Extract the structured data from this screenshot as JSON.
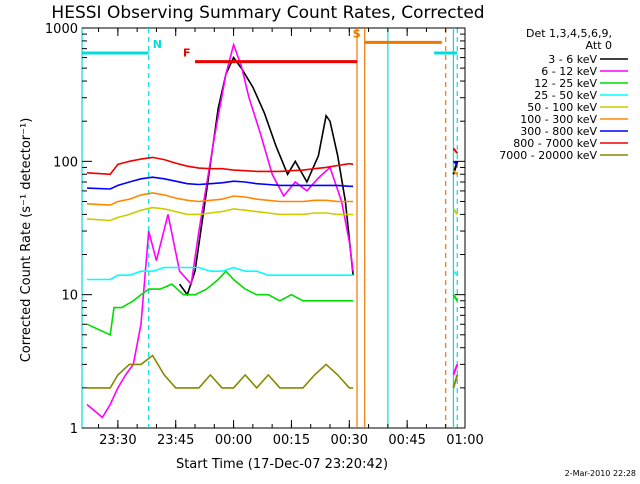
{
  "chart_data": {
    "type": "line",
    "title": "HESSI Observing Summary Count Rates, Corrected",
    "xlabel": "Start Time (17-Dec-07 23:20:42)",
    "ylabel": "Corrected Count Rate (s⁻¹ detector⁻¹)",
    "yscale": "log",
    "ylim": [
      1,
      1000
    ],
    "xlim": [
      "23:20:42",
      "01:00"
    ],
    "x_ticks": [
      "23:30",
      "23:45",
      "00:00",
      "00:15",
      "00:30",
      "00:45",
      "01:00"
    ],
    "y_ticks": [
      "1",
      "10",
      "100",
      "1000"
    ],
    "legend_title": [
      "Det 1,3,4,5,6,9,",
      "Att 0"
    ],
    "legend_position": "right",
    "timestamp": "2-Mar-2010 22:28",
    "series": [
      {
        "name": "3 - 6 keV",
        "color": "#000000",
        "x": [
          "23:46",
          "23:48",
          "23:50",
          "23:53",
          "23:56",
          "23:58",
          "00:00",
          "00:02",
          "00:05",
          "00:08",
          "00:11",
          "00:14",
          "00:16",
          "00:19",
          "00:22",
          "00:24",
          "00:25",
          "00:27",
          "00:29",
          "00:31"
        ],
        "y": [
          12,
          10,
          15,
          60,
          250,
          450,
          600,
          500,
          360,
          230,
          130,
          80,
          100,
          70,
          110,
          220,
          200,
          110,
          50,
          14
        ]
      },
      {
        "name": "6 - 12 keV",
        "color": "#ff00ff",
        "x": [
          "23:22",
          "23:26",
          "23:28",
          "23:30",
          "23:32",
          "23:34",
          "23:36",
          "23:38",
          "23:40",
          "23:43",
          "23:46",
          "23:49",
          "23:51",
          "23:55",
          "23:58",
          "00:00",
          "00:02",
          "00:04",
          "00:07",
          "00:10",
          "00:13",
          "00:16",
          "00:19",
          "00:22",
          "00:25",
          "00:28",
          "00:30",
          "00:31"
        ],
        "y": [
          1.5,
          1.2,
          1.5,
          2,
          2.5,
          3,
          6,
          30,
          18,
          40,
          15,
          12,
          30,
          150,
          450,
          750,
          520,
          300,
          160,
          80,
          55,
          70,
          60,
          75,
          90,
          50,
          25,
          15
        ]
      },
      {
        "name": "12 - 25 keV",
        "color": "#00dd00",
        "x": [
          "23:22",
          "23:28",
          "23:29",
          "23:31",
          "23:34",
          "23:36",
          "23:38",
          "23:41",
          "23:44",
          "23:47",
          "23:50",
          "23:53",
          "23:56",
          "23:58",
          "24:00",
          "00:03",
          "00:06",
          "00:09",
          "00:12",
          "00:15",
          "00:18",
          "00:21",
          "00:24",
          "00:27",
          "00:30",
          "00:31"
        ],
        "y": [
          6,
          5,
          8,
          8,
          9,
          10,
          11,
          11,
          12,
          10,
          10,
          11,
          13,
          15,
          13,
          11,
          10,
          10,
          9,
          10,
          9,
          9,
          9,
          9,
          9,
          9
        ]
      },
      {
        "name": "25 - 50 keV",
        "color": "#00ffff",
        "x": [
          "23:22",
          "23:28",
          "23:30",
          "23:33",
          "23:36",
          "23:39",
          "23:42",
          "23:45",
          "23:48",
          "23:51",
          "23:54",
          "23:57",
          "00:00",
          "00:03",
          "00:06",
          "00:09",
          "00:12",
          "00:15",
          "00:18",
          "00:21",
          "00:24",
          "00:27",
          "00:30",
          "00:31"
        ],
        "y": [
          13,
          13,
          14,
          14,
          15,
          15,
          16,
          16,
          16,
          16,
          15,
          15,
          16,
          15,
          15,
          14,
          14,
          14,
          14,
          14,
          14,
          14,
          14,
          14
        ]
      },
      {
        "name": "50 - 100 keV",
        "color": "#cccc00",
        "x": [
          "23:22",
          "23:28",
          "23:30",
          "23:33",
          "23:36",
          "23:39",
          "23:42",
          "23:45",
          "23:48",
          "23:51",
          "23:54",
          "23:57",
          "00:00",
          "00:03",
          "00:06",
          "00:09",
          "00:12",
          "00:15",
          "00:18",
          "00:21",
          "00:24",
          "00:27",
          "00:30",
          "00:31"
        ],
        "y": [
          37,
          36,
          38,
          40,
          43,
          45,
          44,
          42,
          40,
          40,
          41,
          42,
          44,
          43,
          42,
          41,
          40,
          40,
          40,
          41,
          41,
          40,
          40,
          40
        ]
      },
      {
        "name": "100 - 300 keV",
        "color": "#ff8800",
        "x": [
          "23:22",
          "23:28",
          "23:30",
          "23:33",
          "23:36",
          "23:39",
          "23:42",
          "23:45",
          "23:48",
          "23:51",
          "23:54",
          "23:57",
          "00:00",
          "00:03",
          "00:06",
          "00:09",
          "00:12",
          "00:15",
          "00:18",
          "00:21",
          "00:24",
          "00:27",
          "00:30",
          "00:31"
        ],
        "y": [
          48,
          47,
          50,
          52,
          56,
          58,
          56,
          53,
          51,
          50,
          51,
          52,
          55,
          54,
          52,
          51,
          50,
          50,
          50,
          51,
          51,
          50,
          50,
          50
        ]
      },
      {
        "name": "300 - 800 keV",
        "color": "#0000ff",
        "x": [
          "23:22",
          "23:28",
          "23:30",
          "23:33",
          "23:36",
          "23:39",
          "23:42",
          "23:45",
          "23:48",
          "23:51",
          "23:54",
          "23:57",
          "00:00",
          "00:03",
          "00:06",
          "00:09",
          "00:12",
          "00:15",
          "00:18",
          "00:21",
          "00:24",
          "00:27",
          "00:30",
          "00:31"
        ],
        "y": [
          63,
          62,
          66,
          70,
          74,
          76,
          74,
          71,
          68,
          67,
          68,
          69,
          71,
          70,
          68,
          67,
          66,
          66,
          66,
          66,
          66,
          66,
          65,
          65
        ]
      },
      {
        "name": "800 - 7000 keV",
        "color": "#ee0000",
        "x": [
          "23:22",
          "23:28",
          "23:30",
          "23:33",
          "23:36",
          "23:39",
          "23:42",
          "23:45",
          "23:48",
          "23:51",
          "23:54",
          "23:57",
          "00:00",
          "00:03",
          "00:06",
          "00:09",
          "00:12",
          "00:15",
          "00:18",
          "00:21",
          "00:24",
          "00:27",
          "00:30",
          "00:31"
        ],
        "y": [
          82,
          80,
          95,
          100,
          104,
          107,
          103,
          97,
          92,
          89,
          88,
          88,
          86,
          85,
          84,
          84,
          84,
          85,
          86,
          88,
          90,
          93,
          96,
          95
        ]
      },
      {
        "name": "7000 - 20000 keV",
        "color": "#888800",
        "x": [
          "23:22",
          "23:28",
          "23:30",
          "23:33",
          "23:36",
          "23:39",
          "23:42",
          "23:45",
          "23:48",
          "23:51",
          "23:54",
          "23:57",
          "00:00",
          "00:03",
          "00:06",
          "00:09",
          "00:12",
          "00:15",
          "00:18",
          "00:21",
          "00:24",
          "00:27",
          "00:30",
          "00:31"
        ],
        "y": [
          2,
          2,
          2.5,
          3,
          3,
          3.5,
          2.5,
          2,
          2,
          2,
          2.5,
          2,
          2,
          2.5,
          2,
          2.5,
          2,
          2,
          2,
          2.5,
          3,
          2.5,
          2,
          2
        ]
      }
    ],
    "second_segment_x": [
      "00:57",
      "00:58"
    ],
    "second_segment_y": {
      "3 - 6 keV": [
        80,
        100
      ],
      "6 - 12 keV": [
        2.5,
        3
      ],
      "12 - 25 keV": [
        10,
        9
      ],
      "25 - 50 keV": [
        15,
        14
      ],
      "50 - 100 keV": [
        44,
        40
      ],
      "100 - 300 keV": [
        85,
        80
      ],
      "300 - 800 keV": [
        100,
        95
      ],
      "800 - 7000 keV": [
        125,
        115
      ],
      "7000 - 20000 keV": [
        2,
        2.5
      ]
    },
    "flags": [
      {
        "label": "F",
        "color": "#ee0000",
        "x_start": "23:50",
        "x_end": "00:32",
        "y": 560
      },
      {
        "label": "N",
        "color": "#00dddd",
        "x_start": "23:20:42",
        "x_end": "23:38",
        "y": 650
      },
      {
        "label": "S",
        "color": "#ee7700",
        "x_start": "00:34",
        "x_end": "00:54",
        "y": 780
      },
      {
        "label": "",
        "color": "#00dddd",
        "x_start": "00:52",
        "x_end": "00:58",
        "y": 650
      }
    ],
    "vertical_markers": [
      {
        "x": "23:20:42",
        "color": "#00dddd",
        "style": "solid"
      },
      {
        "x": "23:38",
        "color": "#00dddd",
        "style": "dashed"
      },
      {
        "x": "00:32",
        "color": "#ee7700",
        "style": "solid"
      },
      {
        "x": "00:34",
        "color": "#ee7700",
        "style": "solid"
      },
      {
        "x": "00:40",
        "color": "#00dddd",
        "style": "solid"
      },
      {
        "x": "00:55",
        "color": "#ee7700",
        "style": "dashed"
      },
      {
        "x": "00:57",
        "color": "#00dddd",
        "style": "solid"
      },
      {
        "x": "00:58",
        "color": "#00dddd",
        "style": "dashed"
      }
    ]
  }
}
